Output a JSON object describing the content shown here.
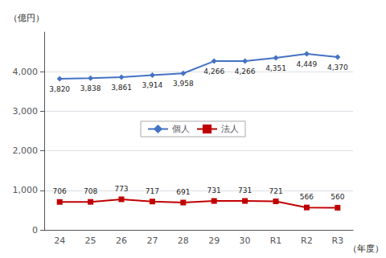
{
  "chart_data": {
    "type": "line",
    "categories": [
      "24",
      "25",
      "26",
      "27",
      "28",
      "29",
      "30",
      "R1",
      "R2",
      "R3"
    ],
    "series": [
      {
        "name": "個人",
        "color": "#4472C4",
        "marker": "diamond",
        "values": [
          3820,
          3838,
          3861,
          3914,
          3958,
          4266,
          4266,
          4351,
          4449,
          4370
        ],
        "value_labels": [
          "3,820",
          "3,838",
          "3,861",
          "3,914",
          "3,958",
          "4,266",
          "4,266",
          "4,351",
          "4,449",
          "4,370"
        ]
      },
      {
        "name": "法人",
        "color": "#C00000",
        "marker": "square",
        "values": [
          706,
          708,
          773,
          717,
          691,
          731,
          731,
          721,
          566,
          560
        ]
      }
    ],
    "ylabel": "（億円）",
    "xlabel": "（年度）",
    "ylim": [
      0,
      5000
    ],
    "yticks": [
      0,
      {
        "value": 1000,
        "label": "1,000"
      },
      {
        "value": 2000,
        "label": "2,000"
      },
      {
        "value": 3000,
        "label": "3,000"
      },
      {
        "value": 4000,
        "label": "4,000"
      }
    ],
    "grid": true,
    "legend": "center",
    "data_labels": true
  }
}
